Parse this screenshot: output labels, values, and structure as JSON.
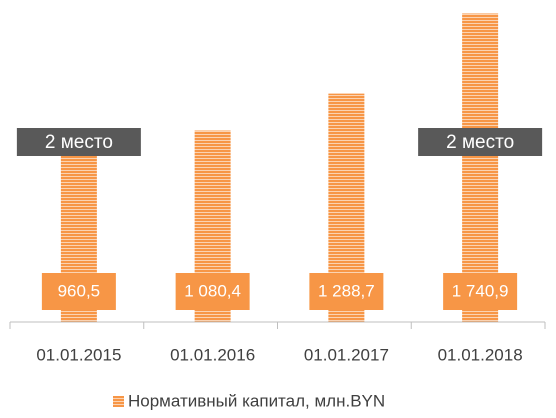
{
  "chart_data": {
    "type": "bar",
    "categories": [
      "01.01.2015",
      "01.01.2016",
      "01.01.2017",
      "01.01.2018"
    ],
    "series": [
      {
        "name": "Нормативный капитал, млн.BYN",
        "color": "#f79646",
        "values": [
          960.5,
          1080.4,
          1288.7,
          1740.9
        ],
        "value_labels": [
          "960,5",
          "1 080,4",
          "1 288,7",
          "1 740,9"
        ]
      }
    ],
    "rank_labels": [
      "2 место",
      null,
      null,
      "2 место"
    ],
    "ylim": [
      0,
      1800
    ],
    "legend": "bottom"
  }
}
